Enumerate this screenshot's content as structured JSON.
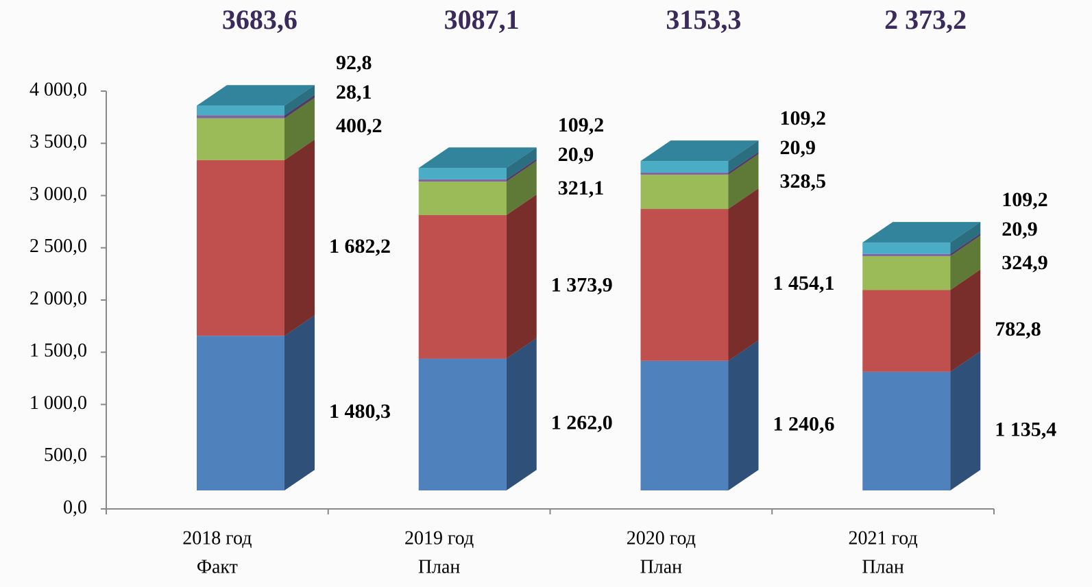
{
  "chart_data": {
    "type": "bar3d-stacked",
    "categories": [
      [
        "2018 год",
        "Факт"
      ],
      [
        "2019 год",
        "План"
      ],
      [
        "2020 год",
        "План"
      ],
      [
        "2021 год",
        "План"
      ]
    ],
    "series": [
      {
        "color": "#4f81bd",
        "side": "#2f5078",
        "values": [
          1480.3,
          1262.0,
          1240.6,
          1135.4
        ],
        "value_labels": [
          "1 480,3",
          "1 262,0",
          "1 240,6",
          "1 135,4"
        ]
      },
      {
        "color": "#c0504d",
        "side": "#7a2e2c",
        "values": [
          1682.2,
          1373.9,
          1454.1,
          782.8
        ],
        "value_labels": [
          "1 682,2",
          "1 373,9",
          "1 454,1",
          "782,8"
        ]
      },
      {
        "color": "#9bbb59",
        "side": "#5f7a36",
        "values": [
          400.2,
          321.1,
          328.5,
          324.9
        ],
        "value_labels": [
          "400,2",
          "321,1",
          "328,5",
          "324,9"
        ]
      },
      {
        "color": "#8064a2",
        "side": "#4e3b66",
        "values": [
          28.1,
          20.9,
          20.9,
          20.9
        ],
        "value_labels": [
          "28,1",
          "20,9",
          "20,9",
          "20,9"
        ]
      },
      {
        "color": "#4bacc6",
        "side": "#2a6e80",
        "values": [
          92.8,
          109.2,
          109.2,
          109.2
        ],
        "value_labels": [
          "92,8",
          "109,2",
          "109,2",
          "109,2"
        ]
      }
    ],
    "totals": {
      "values": [
        3683.6,
        3087.1,
        3153.3,
        2373.2
      ],
      "value_labels": [
        "3683,6",
        "3087,1",
        "3153,3",
        "2 373,2"
      ],
      "color": "#3b2a5c"
    },
    "ylim": [
      0,
      4000
    ],
    "yticks": [
      {
        "value": 0,
        "label": "0,0"
      },
      {
        "value": 500,
        "label": "500,0"
      },
      {
        "value": 1000,
        "label": "1 000,0"
      },
      {
        "value": 1500,
        "label": "1 500,0"
      },
      {
        "value": 2000,
        "label": "2 000,0"
      },
      {
        "value": 2500,
        "label": "2 500,0"
      },
      {
        "value": 3000,
        "label": "3 000,0"
      },
      {
        "value": 3500,
        "label": "3 500,0"
      },
      {
        "value": 4000,
        "label": "4 000,0"
      }
    ]
  }
}
